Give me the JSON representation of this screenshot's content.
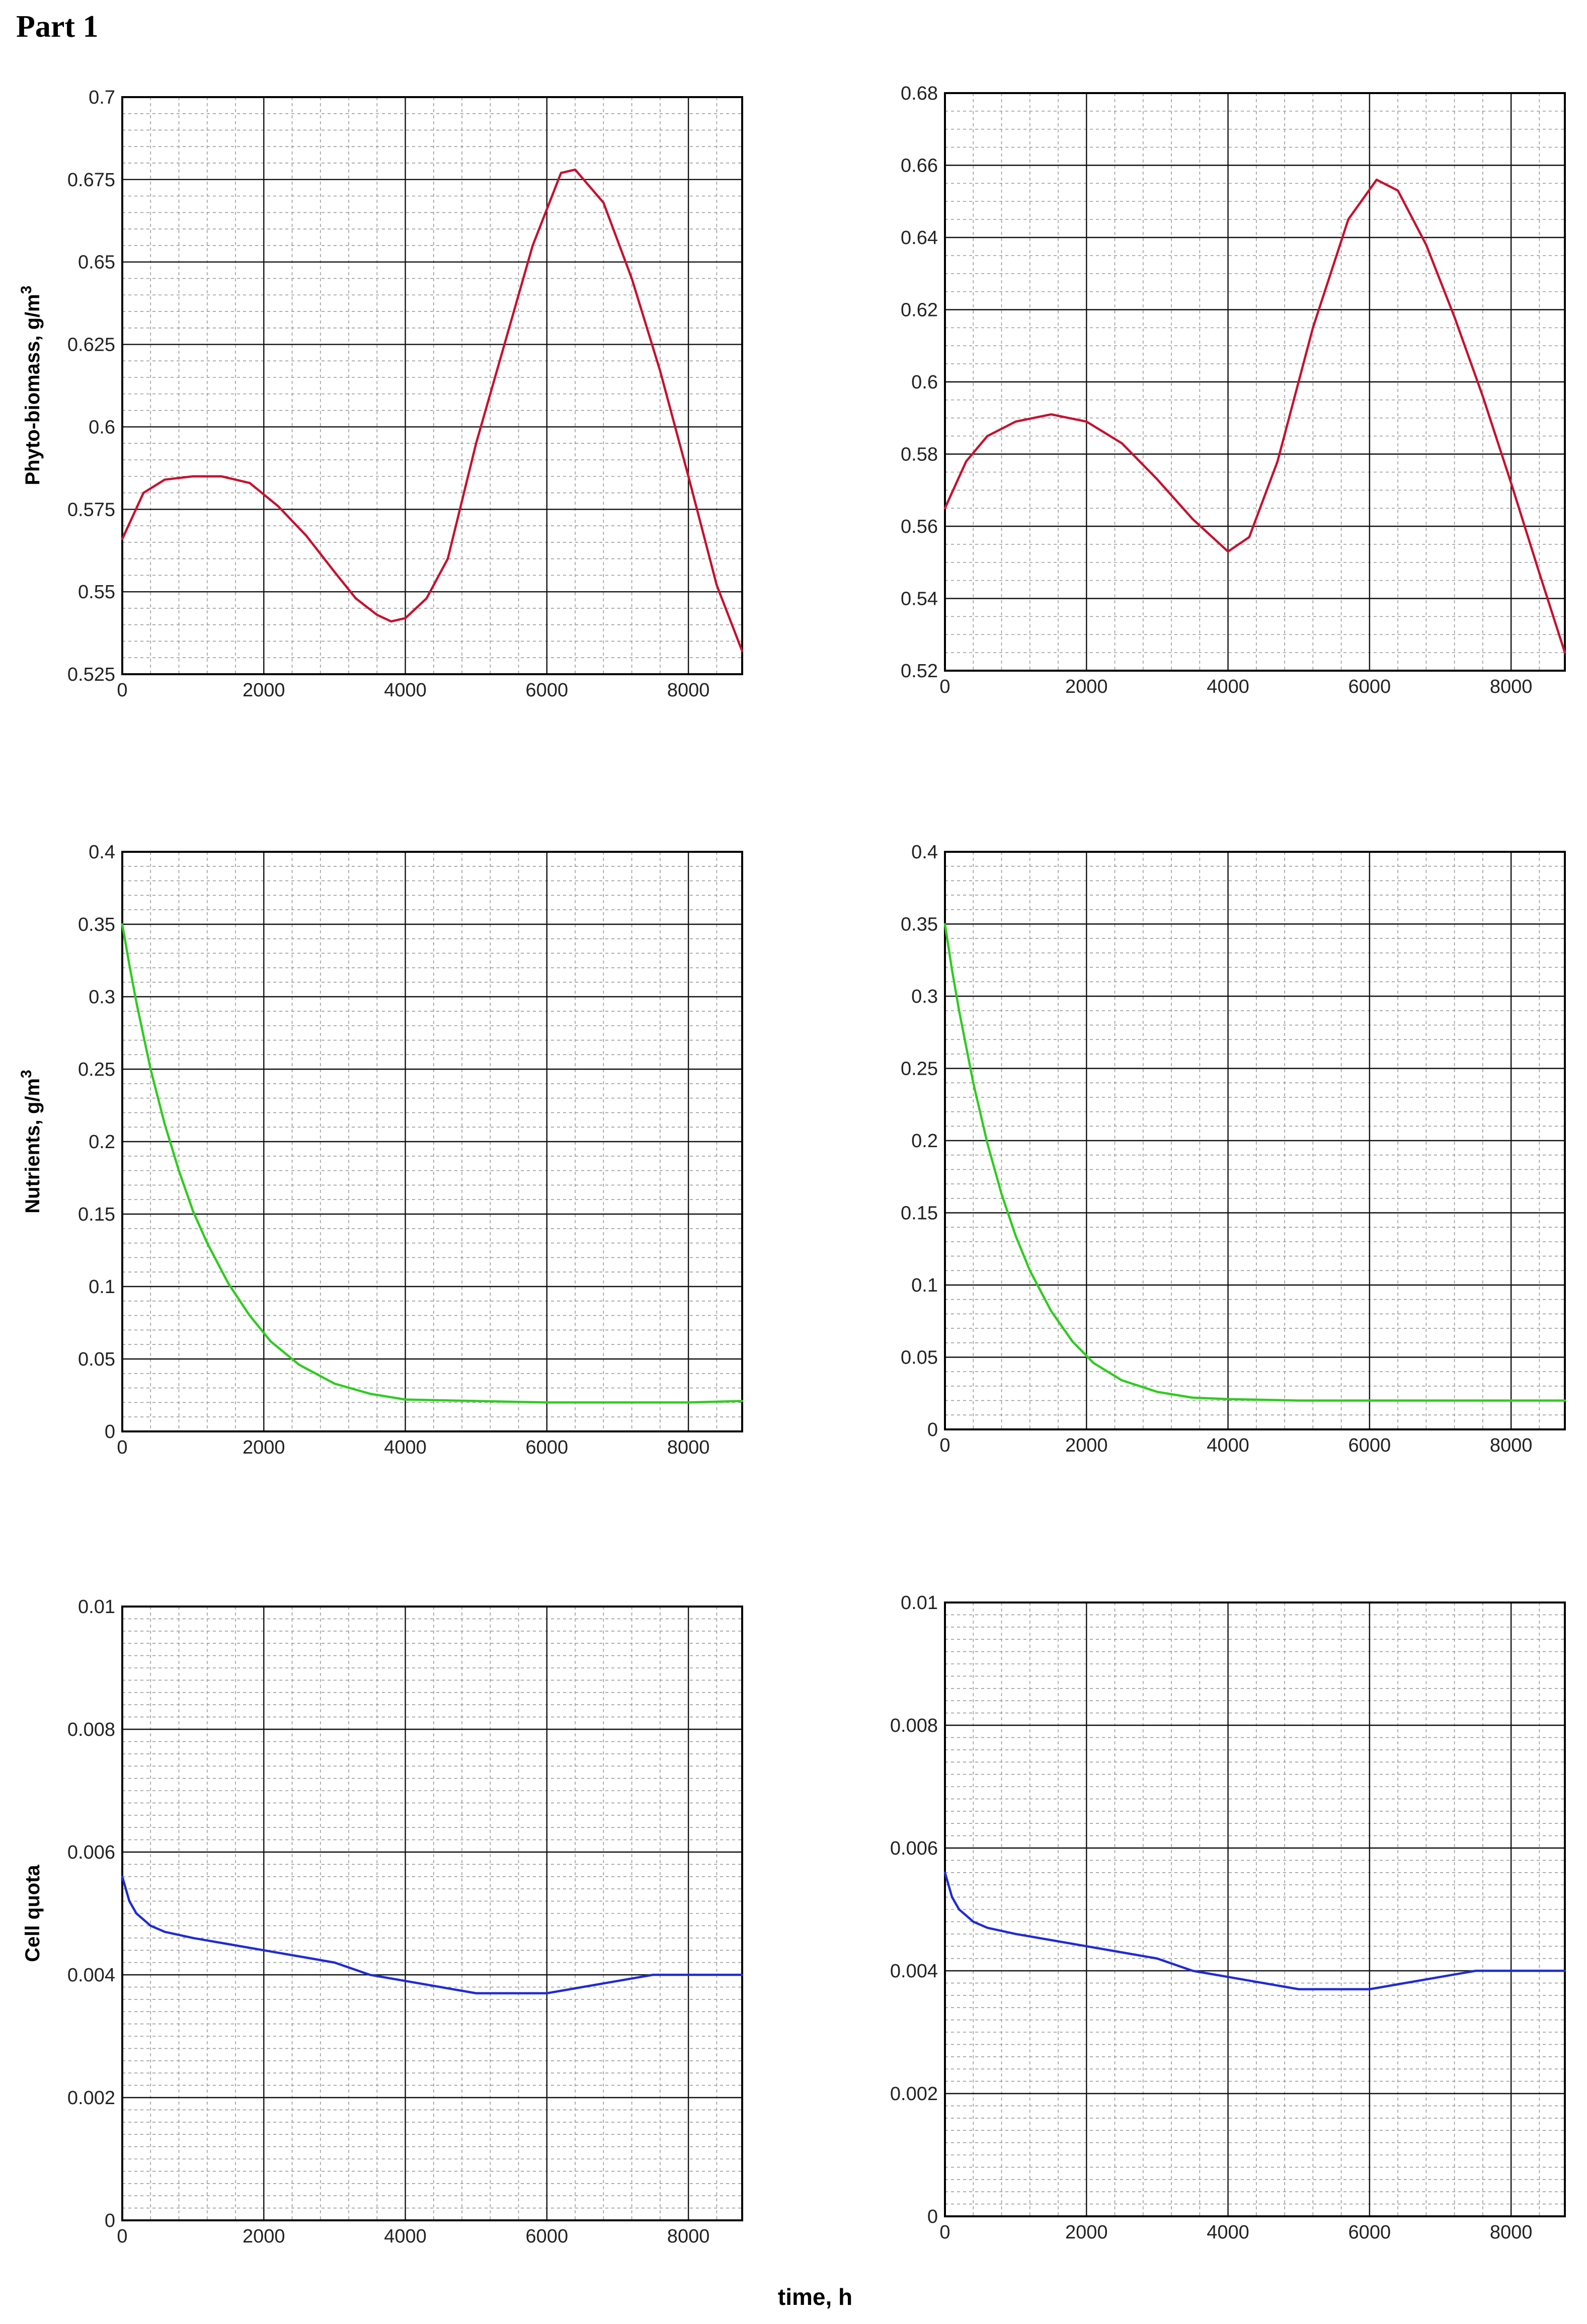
{
  "page_title": "Part 1",
  "xlabel": "time, h",
  "colors": {
    "phyto": "#c8102e",
    "nutrients": "#2ecc1f",
    "cellquota": "#1f2bd6",
    "grid_major": "#111111",
    "grid_minor": "#9a9a9a"
  },
  "chart_data": [
    {
      "id": "phyto-left",
      "type": "line",
      "title": "",
      "ylabel": "Phyto-biomass, g/m",
      "ylabel_sup": "3",
      "xlabel": "",
      "xlim": [
        0,
        8760
      ],
      "ylim": [
        0.525,
        0.7
      ],
      "xticks": [
        0,
        2000,
        4000,
        6000,
        8000
      ],
      "xtick_labels": [
        "0",
        "2000",
        "4000",
        "6000",
        "8000"
      ],
      "yticks": [
        0.525,
        0.55,
        0.575,
        0.6,
        0.625,
        0.65,
        0.675,
        0.7
      ],
      "ytick_labels": [
        "0.525",
        "0.55",
        "0.575",
        "0.6",
        "0.625",
        "0.65",
        "0.675",
        "0.7"
      ],
      "x_minor_step": 400,
      "y_minor_step": 0.005,
      "color": "#c8102e",
      "x": [
        0,
        300,
        600,
        1000,
        1400,
        1800,
        2200,
        2600,
        3000,
        3300,
        3600,
        3800,
        4000,
        4300,
        4600,
        5000,
        5400,
        5800,
        6200,
        6400,
        6800,
        7200,
        7600,
        8000,
        8400,
        8760
      ],
      "y": [
        0.566,
        0.58,
        0.584,
        0.585,
        0.585,
        0.583,
        0.576,
        0.567,
        0.556,
        0.548,
        0.543,
        0.541,
        0.542,
        0.548,
        0.56,
        0.595,
        0.625,
        0.655,
        0.677,
        0.678,
        0.668,
        0.645,
        0.617,
        0.585,
        0.552,
        0.532
      ]
    },
    {
      "id": "phyto-right",
      "type": "line",
      "title": "",
      "ylabel": "",
      "xlabel": "",
      "xlim": [
        0,
        8760
      ],
      "ylim": [
        0.52,
        0.68
      ],
      "xticks": [
        0,
        2000,
        4000,
        6000,
        8000
      ],
      "xtick_labels": [
        "0",
        "2000",
        "4000",
        "6000",
        "8000"
      ],
      "yticks": [
        0.52,
        0.54,
        0.56,
        0.58,
        0.6,
        0.62,
        0.64,
        0.66,
        0.68
      ],
      "ytick_labels": [
        "0.52",
        "0.54",
        "0.56",
        "0.58",
        "0.6",
        "0.62",
        "0.64",
        "0.66",
        "0.68"
      ],
      "x_minor_step": 400,
      "y_minor_step": 0.005,
      "color": "#c8102e",
      "x": [
        0,
        300,
        600,
        1000,
        1500,
        2000,
        2500,
        3000,
        3500,
        4000,
        4300,
        4700,
        5200,
        5700,
        6100,
        6400,
        6800,
        7200,
        7600,
        8000,
        8400,
        8760
      ],
      "y": [
        0.565,
        0.578,
        0.585,
        0.589,
        0.591,
        0.589,
        0.583,
        0.573,
        0.562,
        0.553,
        0.557,
        0.578,
        0.615,
        0.645,
        0.656,
        0.653,
        0.638,
        0.618,
        0.596,
        0.572,
        0.547,
        0.525
      ]
    },
    {
      "id": "nutrients-left",
      "type": "line",
      "title": "",
      "ylabel": "Nutrients, g/m",
      "ylabel_sup": "3",
      "xlabel": "",
      "xlim": [
        0,
        8760
      ],
      "ylim": [
        0,
        0.4
      ],
      "xticks": [
        0,
        2000,
        4000,
        6000,
        8000
      ],
      "xtick_labels": [
        "0",
        "2000",
        "4000",
        "6000",
        "8000"
      ],
      "yticks": [
        0,
        0.05,
        0.1,
        0.15,
        0.2,
        0.25,
        0.3,
        0.35,
        0.4
      ],
      "ytick_labels": [
        "0",
        "0.05",
        "0.1",
        "0.15",
        "0.2",
        "0.25",
        "0.3",
        "0.35",
        "0.4"
      ],
      "x_minor_step": 400,
      "y_minor_step": 0.01,
      "color": "#2ecc1f",
      "x": [
        0,
        100,
        200,
        400,
        600,
        800,
        1000,
        1200,
        1500,
        1800,
        2100,
        2500,
        3000,
        3500,
        4000,
        5000,
        6000,
        7000,
        8000,
        8760
      ],
      "y": [
        0.35,
        0.322,
        0.296,
        0.25,
        0.212,
        0.18,
        0.152,
        0.13,
        0.102,
        0.08,
        0.062,
        0.046,
        0.033,
        0.026,
        0.022,
        0.021,
        0.02,
        0.02,
        0.02,
        0.021
      ]
    },
    {
      "id": "nutrients-right",
      "type": "line",
      "title": "",
      "ylabel": "",
      "xlabel": "",
      "xlim": [
        0,
        8760
      ],
      "ylim": [
        0,
        0.4
      ],
      "xticks": [
        0,
        2000,
        4000,
        6000,
        8000
      ],
      "xtick_labels": [
        "0",
        "2000",
        "4000",
        "6000",
        "8000"
      ],
      "yticks": [
        0,
        0.05,
        0.1,
        0.15,
        0.2,
        0.25,
        0.3,
        0.35,
        0.4
      ],
      "ytick_labels": [
        "0",
        "0.05",
        "0.1",
        "0.15",
        "0.2",
        "0.25",
        "0.3",
        "0.35",
        "0.4"
      ],
      "x_minor_step": 400,
      "y_minor_step": 0.01,
      "color": "#2ecc1f",
      "x": [
        0,
        100,
        200,
        400,
        600,
        800,
        1000,
        1200,
        1500,
        1800,
        2100,
        2500,
        3000,
        3500,
        4000,
        5000,
        6000,
        7000,
        8000,
        8760
      ],
      "y": [
        0.35,
        0.318,
        0.29,
        0.24,
        0.198,
        0.163,
        0.134,
        0.11,
        0.082,
        0.061,
        0.046,
        0.034,
        0.026,
        0.022,
        0.021,
        0.02,
        0.02,
        0.02,
        0.02,
        0.02
      ]
    },
    {
      "id": "cellquota-left",
      "type": "line",
      "title": "",
      "ylabel": "Cell quota",
      "xlabel": "",
      "xlim": [
        0,
        8760
      ],
      "ylim": [
        0,
        0.01
      ],
      "xticks": [
        0,
        2000,
        4000,
        6000,
        8000
      ],
      "xtick_labels": [
        "0",
        "2000",
        "4000",
        "6000",
        "8000"
      ],
      "yticks": [
        0,
        0.002,
        0.004,
        0.006,
        0.008,
        0.01
      ],
      "ytick_labels": [
        "0",
        "0.002",
        "0.004",
        "0.006",
        "0.008",
        "0.01"
      ],
      "x_minor_step": 400,
      "y_minor_step": 0.0002,
      "color": "#1f2bd6",
      "x": [
        0,
        100,
        200,
        400,
        600,
        1000,
        1500,
        2000,
        2500,
        3000,
        3500,
        4000,
        4500,
        5000,
        5500,
        6000,
        6500,
        7000,
        7500,
        8000,
        8500,
        8760
      ],
      "y": [
        0.0056,
        0.0052,
        0.005,
        0.0048,
        0.0047,
        0.0046,
        0.0045,
        0.0044,
        0.0043,
        0.0042,
        0.004,
        0.0039,
        0.0038,
        0.0037,
        0.0037,
        0.0037,
        0.0038,
        0.0039,
        0.004,
        0.004,
        0.004,
        0.004
      ]
    },
    {
      "id": "cellquota-right",
      "type": "line",
      "title": "",
      "ylabel": "",
      "xlabel": "",
      "xlim": [
        0,
        8760
      ],
      "ylim": [
        0,
        0.01
      ],
      "xticks": [
        0,
        2000,
        4000,
        6000,
        8000
      ],
      "xtick_labels": [
        "0",
        "2000",
        "4000",
        "6000",
        "8000"
      ],
      "yticks": [
        0,
        0.002,
        0.004,
        0.006,
        0.008,
        0.01
      ],
      "ytick_labels": [
        "0",
        "0.002",
        "0.004",
        "0.006",
        "0.008",
        "0.01"
      ],
      "x_minor_step": 400,
      "y_minor_step": 0.0002,
      "color": "#1f2bd6",
      "x": [
        0,
        100,
        200,
        400,
        600,
        1000,
        1500,
        2000,
        2500,
        3000,
        3500,
        4000,
        4500,
        5000,
        5500,
        6000,
        6500,
        7000,
        7500,
        8000,
        8500,
        8760
      ],
      "y": [
        0.0056,
        0.0052,
        0.005,
        0.0048,
        0.0047,
        0.0046,
        0.0045,
        0.0044,
        0.0043,
        0.0042,
        0.004,
        0.0039,
        0.0038,
        0.0037,
        0.0037,
        0.0037,
        0.0038,
        0.0039,
        0.004,
        0.004,
        0.004,
        0.004
      ]
    }
  ]
}
